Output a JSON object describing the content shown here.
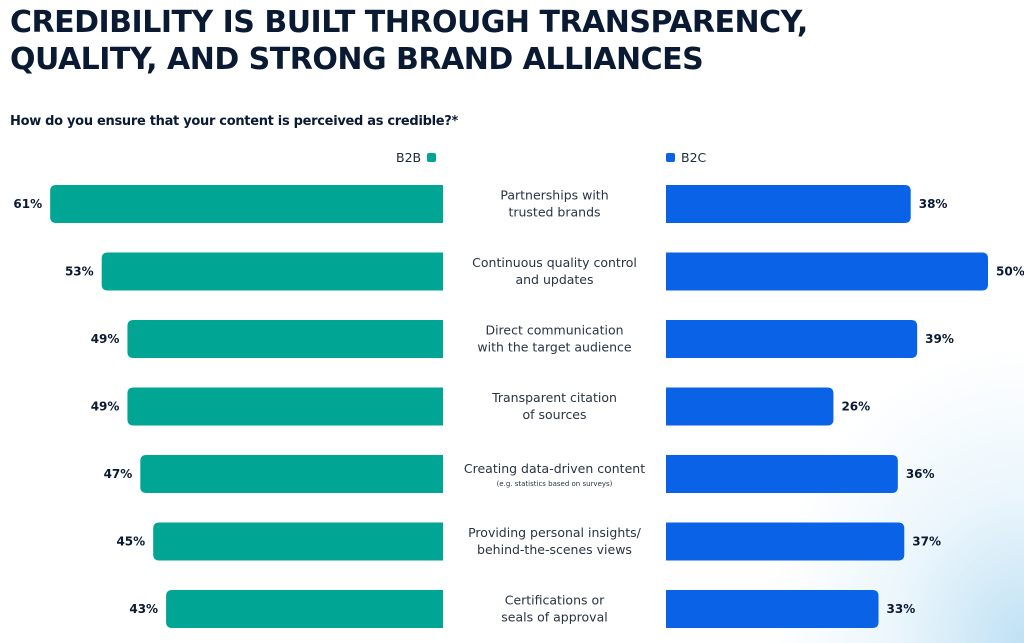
{
  "header": {
    "title": "CREDIBILITY IS BUILT THROUGH TRANSPARENCY, QUALITY, AND STRONG BRAND ALLIANCES",
    "subtitle": "How do you ensure that your content is perceived as credible?*"
  },
  "chart_data": {
    "type": "bar",
    "orientation": "horizontal-butterfly",
    "title": "CREDIBILITY IS BUILT THROUGH TRANSPARENCY, QUALITY, AND STRONG BRAND ALLIANCES",
    "subtitle": "How do you ensure that your content is perceived as credible?*",
    "unit": "%",
    "xlim": [
      0,
      100
    ],
    "grid": false,
    "legend_placement": "top",
    "categories": [
      {
        "lines": [
          "Partnerships with",
          "trusted brands"
        ],
        "note": ""
      },
      {
        "lines": [
          "Continuous quality control",
          "and updates"
        ],
        "note": ""
      },
      {
        "lines": [
          "Direct communication",
          "with the target audience"
        ],
        "note": ""
      },
      {
        "lines": [
          "Transparent citation",
          "of sources"
        ],
        "note": ""
      },
      {
        "lines": [
          "Creating data-driven content"
        ],
        "note": "(e.g. statistics based on surveys)"
      },
      {
        "lines": [
          "Providing personal insights/",
          "behind-the-scenes views"
        ],
        "note": ""
      },
      {
        "lines": [
          "Certifications or",
          "seals of approval"
        ],
        "note": ""
      }
    ],
    "series": [
      {
        "name": "B2B",
        "color": "#00a693",
        "values": [
          61,
          53,
          49,
          49,
          47,
          45,
          43
        ]
      },
      {
        "name": "B2C",
        "color": "#0a63e6",
        "values": [
          38,
          50,
          39,
          26,
          36,
          37,
          33
        ]
      }
    ]
  }
}
